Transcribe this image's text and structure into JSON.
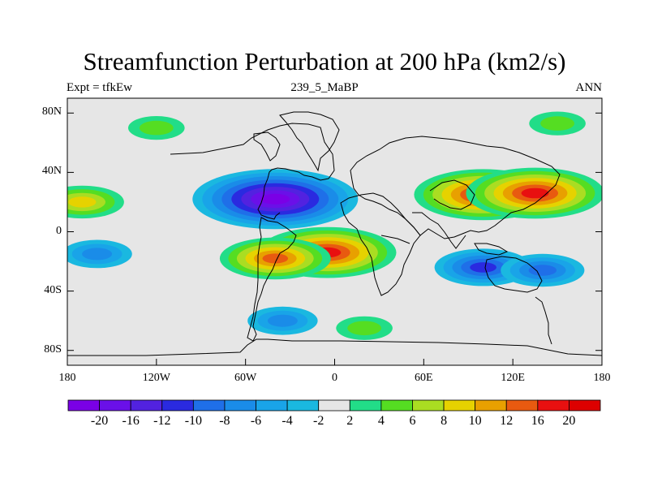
{
  "title": "Streamfunction Perturbation at 200 hPa (km2/s)",
  "subtitle_left": "Expt = tfkEw",
  "subtitle_center": "239_5_MaBP",
  "subtitle_right": "ANN",
  "lat_ticks": [
    "80N",
    "40N",
    "0",
    "40S",
    "80S"
  ],
  "lon_ticks": [
    "180",
    "120W",
    "60W",
    "0",
    "60E",
    "120E",
    "180"
  ],
  "colorbar": {
    "labels": [
      "-20",
      "-16",
      "-12",
      "-10",
      "-8",
      "-6",
      "-4",
      "-2",
      "2",
      "4",
      "6",
      "8",
      "10",
      "12",
      "16",
      "20"
    ],
    "colors": [
      "#7a00e6",
      "#6a10e8",
      "#5222e0",
      "#2a2ae0",
      "#1f6fe8",
      "#1a8ce8",
      "#19a4e8",
      "#1ab8e0",
      "#e6e6e6",
      "#22dd88",
      "#55dd22",
      "#aadd22",
      "#e6d200",
      "#e8a000",
      "#e85a10",
      "#e81010",
      "#dd0000"
    ]
  },
  "chart_data": {
    "type": "filled-contour map",
    "projection": "cylindrical equidistant",
    "lon_range": [
      -180,
      180
    ],
    "lat_range": [
      -90,
      90
    ],
    "contour_levels": [
      -20,
      -16,
      -12,
      -10,
      -8,
      -6,
      -4,
      -2,
      2,
      4,
      6,
      8,
      10,
      12,
      16,
      20
    ],
    "features": [
      {
        "lon": -40,
        "lat": 22,
        "value": -20
      },
      {
        "lon": 100,
        "lat": 25,
        "value": 16
      },
      {
        "lon": 135,
        "lat": 26,
        "value": 16
      },
      {
        "lon": -5,
        "lat": -14,
        "value": 16
      },
      {
        "lon": -40,
        "lat": -18,
        "value": 12
      },
      {
        "lon": 100,
        "lat": -24,
        "value": -10
      },
      {
        "lon": 140,
        "lat": -26,
        "value": -8
      },
      {
        "lon": -170,
        "lat": 20,
        "value": 8
      },
      {
        "lon": 150,
        "lat": 73,
        "value": 4
      },
      {
        "lon": -120,
        "lat": 70,
        "value": 4
      },
      {
        "lon": -160,
        "lat": -15,
        "value": -6
      },
      {
        "lon": -35,
        "lat": -60,
        "value": -6
      },
      {
        "lon": 20,
        "lat": -65,
        "value": 4
      }
    ]
  }
}
